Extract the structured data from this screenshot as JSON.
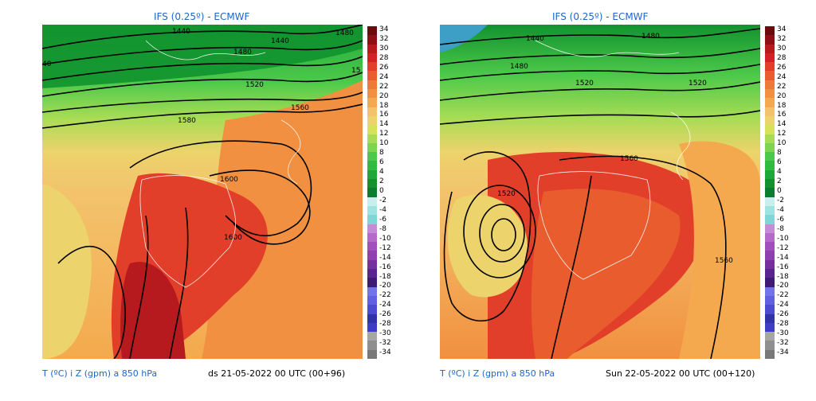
{
  "colors": {
    "title_blue": "#1f66c8",
    "scale": [
      "#787878",
      "#8f8f8f",
      "#a6a6a6",
      "#3d3dc6",
      "#3333a8",
      "#4c4cd1",
      "#6060e0",
      "#7474ea",
      "#3d1b74",
      "#5a2490",
      "#74309e",
      "#8e3fb0",
      "#a04fbd",
      "#b36ac9",
      "#c48bd6",
      "#7fd6d6",
      "#9ee2e2",
      "#c8eeee",
      "#0b7d2e",
      "#11922f",
      "#1ea83a",
      "#2fbc3f",
      "#4cc94a",
      "#7fd44f",
      "#a8dc55",
      "#d6e25a",
      "#ecd36b",
      "#f3c36c",
      "#f4a94e",
      "#f19040",
      "#ed7a36",
      "#e85c2d",
      "#e23f2a",
      "#d22227",
      "#b71a1e",
      "#8e1016",
      "#6a0c0e"
    ]
  },
  "panels": [
    {
      "title": "IFS (0.25º) - ECMWF",
      "bottom_left": "T (ºC) i Z (gpm) a 850 hPa",
      "bottom_right": "ds 21-05-2022 00 UTC (00+96)",
      "contour_labels": [
        "1440",
        "1440",
        "1480",
        "1480",
        "1520",
        "1560",
        "1580",
        "1600",
        "1600",
        "40",
        "15"
      ]
    },
    {
      "title": "IFS (0.25º) - ECMWF",
      "bottom_left": "T (ºC) i Z (gpm) a 850 hPa",
      "bottom_right": "Sun 22-05-2022 00 UTC (00+120)",
      "contour_labels": [
        "1440",
        "1480",
        "1480",
        "1520",
        "1520",
        "1520",
        "1560",
        "1560"
      ]
    }
  ],
  "colorbar_ticks": [
    "34",
    "32",
    "30",
    "28",
    "26",
    "24",
    "22",
    "20",
    "18",
    "16",
    "14",
    "12",
    "10",
    "8",
    "6",
    "4",
    "2",
    "0",
    "-2",
    "-4",
    "-6",
    "-8",
    "-10",
    "-12",
    "-14",
    "-16",
    "-18",
    "-20",
    "-22",
    "-24",
    "-26",
    "-28",
    "-30",
    "-32",
    "-34"
  ]
}
